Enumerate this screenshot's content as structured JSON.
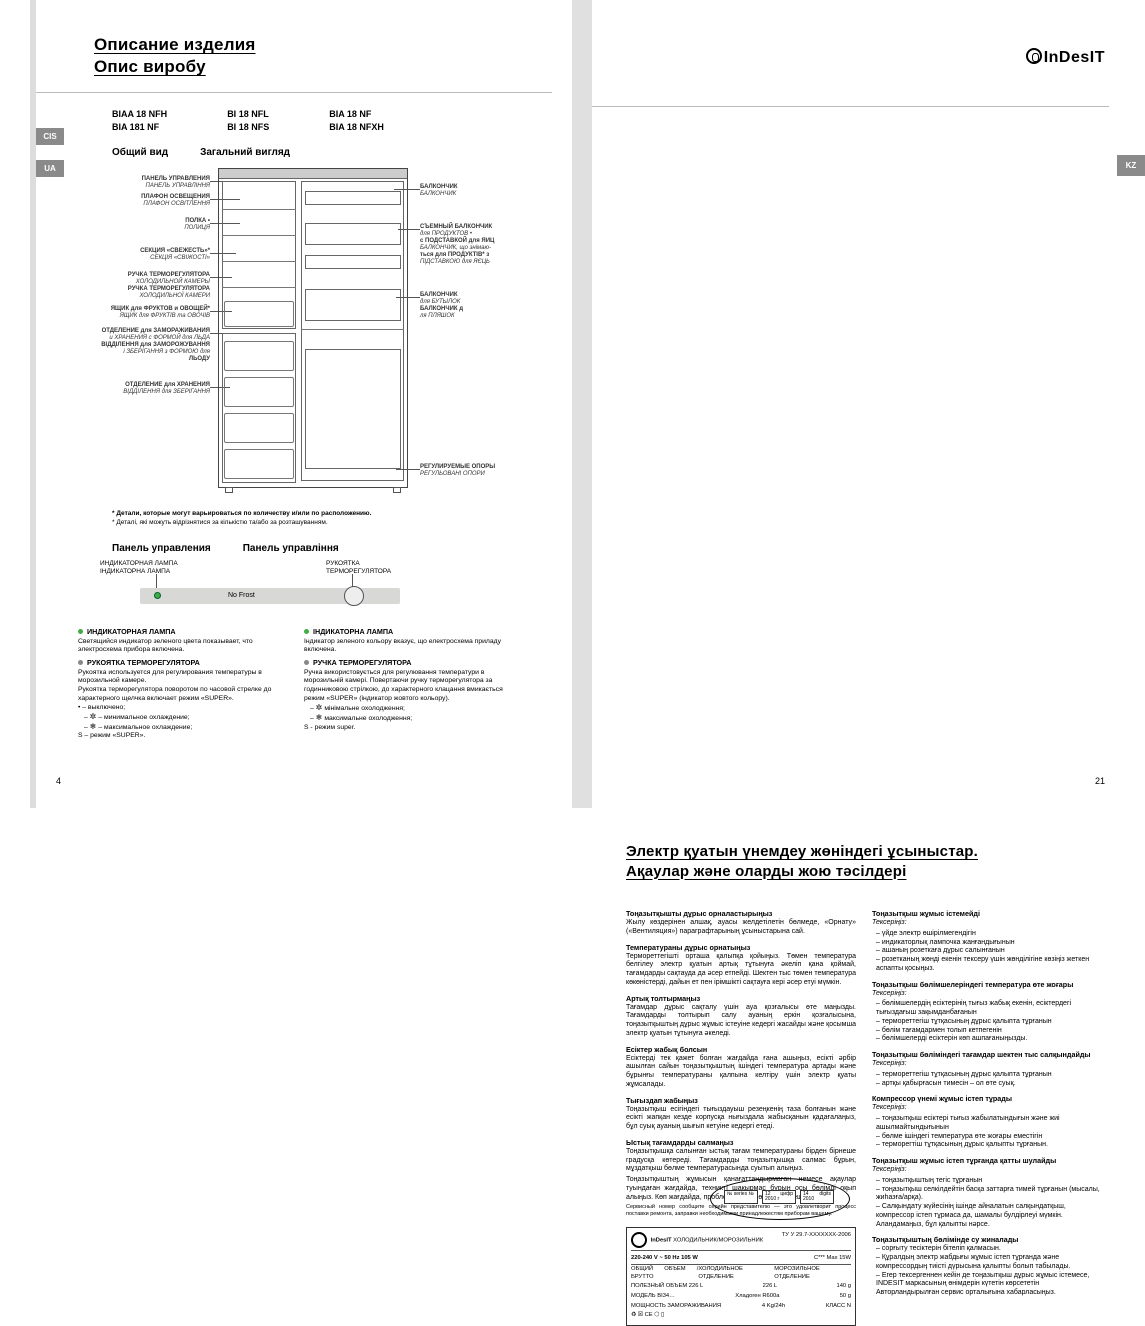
{
  "left": {
    "title1": "Описание изделия",
    "title2": "Опис виробу",
    "pagenum": "4",
    "models": [
      [
        "BIAA 18 NFH",
        "BIA 181 NF"
      ],
      [
        "BI 18 NFL",
        "BI 18 NFS"
      ],
      [
        "BIA 18 NF",
        "BIA 18 NFXH"
      ]
    ],
    "ov1": "Общий вид",
    "ov2": "Загальний вигляд",
    "callouts_left": [
      {
        "t": 12,
        "lines": [
          "ПАНЕЛЬ УПРАВЛЕНИЯ",
          "ПАНЕЛЬ УПРАВЛІННЯ"
        ],
        "ll": 26
      },
      {
        "t": 30,
        "lines": [
          "ПЛАФОН ОСВЕЩЕНИЯ",
          "ПЛАФОН ОСВІТЛЕННЯ"
        ],
        "ll": 30
      },
      {
        "t": 54,
        "lines": [
          "ПОЛКА •",
          "ПОЛИЦЯ"
        ],
        "ll": 30
      },
      {
        "t": 84,
        "lines": [
          "СЕКЦИЯ «СВЕЖЕСТЬ»*",
          "СЕКЦІЯ «СВІЖОСТІ»"
        ],
        "ll": 26
      },
      {
        "t": 108,
        "lines": [
          "РУЧКА ТЕРМОРЕГУЛЯТОРА",
          "ХОЛОДИЛЬНОЙ КАМЕРЫ",
          "РУЧКА ТЕРМОРЕГУЛЯТОРА",
          "ХОЛОДИЛЬНОЇ КАМЕРИ"
        ],
        "ll": 22
      },
      {
        "t": 142,
        "lines": [
          "ЯЩИК для ФРУКТОВ и ОВОЩЕЙ*",
          "ЯЩИК для ФРУКТІВ та ОВОЧІВ"
        ],
        "ll": 22
      },
      {
        "t": 164,
        "lines": [
          "ОТДЕЛЕНИЕ для ЗАМОРАЖИВАНИЯ",
          "и ХРАНЕНИЯ с ФОРМОЙ для ЛЬДА",
          "ВІДДІЛЕННЯ для ЗАМОРОЖУВАННЯ",
          "і ЗБЕРІГАННЯ з ФОРМОЮ для",
          "ЛЬОДУ"
        ],
        "ll": 18
      },
      {
        "t": 218,
        "lines": [
          "ОТДЕЛЕНИЕ для ХРАНЕНИЯ",
          "ВІДДІЛЕННЯ для ЗБЕРІГАННЯ"
        ],
        "ll": 20
      }
    ],
    "callouts_right": [
      {
        "t": 20,
        "lines": [
          "БАЛКОНЧИК",
          "БАЛКОНЧИК"
        ],
        "ll": 26
      },
      {
        "t": 60,
        "lines": [
          "СЪЕМНЫЙ БАЛКОНЧИК",
          "для ПРОДУКТОВ •",
          "с ПОДСТАВКОЙ для ЯИЦ",
          "БАЛКОНЧИК, що знімаю-",
          "ться для ПРОДУКТІВ* з",
          "ПІДСТАВКОЮ для ЯЄЦЬ"
        ],
        "ll": 22
      },
      {
        "t": 128,
        "lines": [
          "БАЛКОНЧИК",
          "для БУТЫЛОК",
          "БАЛКОНЧИК д",
          "ля ПЛЯШОК"
        ],
        "ll": 24
      },
      {
        "t": 300,
        "lines": [
          "РЕГУЛИРУЕМЫЕ ОПОРЫ",
          "РЕГУЛЬОВАНІ ОПОРИ"
        ],
        "ll": 24
      }
    ],
    "footnote1": "* Детали, которые могут варьироваться по количеству и/или по расположению.",
    "footnote2": "* Деталі, які можуть відрізнятися за кількістю та/або за розташуванням.",
    "cp1": "Панель управления",
    "cp2": "Панель управління",
    "cp_ind_ru": "ИНДИКАТОРНАЯ ЛАМПА",
    "cp_ind_ua": "ІНДИКАТОРНА ЛАМПА",
    "cp_knob_ru": "РУКОЯТКА",
    "cp_knob_ru2": "ТЕРМОРЕГУЛЯТОРА",
    "cp_nofrost": "No Frost",
    "col1": {
      "h1": "ИНДИКАТОРНАЯ ЛАМПА",
      "p1": "Светящийся индикатор зеленого цвета показывает, что электросхема прибора включена.",
      "h2": "РУКОЯТКА ТЕРМОРЕГУЛЯТОРА",
      "p2": "Рукоятка используется для регулирования температуры в морозильной камере.",
      "p3": "Рукоятка терморегулятора поворотом по часовой стрелке до характерного щелчка включает режим «SUPER».",
      "b0": "• – выключено;",
      "b1": "– минимальное охлаждение;",
      "b2": "– максимальное охлаждение;",
      "b3": "S – режим «SUPER»."
    },
    "col2": {
      "h1": "ІНДИКАТОРНА ЛАМПА",
      "p1": "Індикатор зеленого кольору вказує, що електросхема приладу включена.",
      "h2": "РУЧКА ТЕРМОРЕГУЛЯТОРА",
      "p2": "Ручка використовується для регулювання температури в морозильній камері. Повертаючи ручку терморегулятора за годинниковою стрілкою, до характерного клацання вмикається режим «SUPER» (індикатор жовтого кольору).",
      "b1": "мінімальне охолодження;",
      "b2": "максимальне охолодження;",
      "b3": "S - режим super."
    }
  },
  "right": {
    "title1": "Электр қуатын үнемдеу жөніндегі ұсыныстар.",
    "title2": "Ақаулар және оларды жою тәсілдері",
    "brand": "InDesIT",
    "pagenum": "21",
    "col1": [
      {
        "h": "Тоңазытқышты дұрыс орналастырыңыз",
        "p": [
          "Жылу көздерінен алшақ, ауасы желдетілетін бөлмеде, «Орнату» («Вентиляция») параграфтарының ұсыныстарына сай."
        ]
      },
      {
        "h": "Температураны дұрыс орнатыңыз",
        "p": [
          "Термореттегішті орташа қалыпқа қойыңыз. Төмен температура белгілеу электр қуатын артық тұтынуға әкеліп қана қоймай, тағамдарды сақтауда да әсер етпейді. Шектен тыс төмен температура көкөністерді, дайын ет пен ірімшікті сақтауға кері әсер етуі мүмкін."
        ]
      },
      {
        "h": "Артық толтырмаңыз",
        "p": [
          "Тағамдар дұрыс сақталу үшін ауа қозғалысы өте маңызды. Тағамдарды толтырып салу ауаның еркін қозғалысына, тоңазытқыштың дұрыс жұмыс істеуіне кедергі жасайды және қосымша электр қуатын тұтынуға әкеледі."
        ]
      },
      {
        "h": "Есіктер жабық болсын",
        "p": [
          "Есіктерді тек қажет болған жағдайда ғана ашыңыз, есікті әрбір ашылған сайын тоңазытқыштың ішіндегі температура артады және бұрынғы температураны қалпына келтіру үшін электр қуаты жұмсалады."
        ]
      },
      {
        "h": "Тығыздап жабыңыз",
        "p": [
          "Тоңазытқыш есігіндегі тығыздауыш резеңкенің таза болғанын және есікті жапқан кезде корпусқа нығыздала жабысқанын қадағалаңыз, бұл суық ауаның шығып кетуіне кедергі етеді."
        ]
      },
      {
        "h": "Ыстық тағамдарды салмаңыз",
        "p": [
          "Тоңазытқышқа салынған ыстық тағам температураны бірден бірнеше градусқа көтереді. Тағамдарды тоңазытқышқа салмас бұрын, мұздатқыш бөлме температурасында суытып алыңыз."
        ]
      },
      {
        "h": "",
        "p": [
          "Тоңазытқыштың жұмысын қанағаттандырмаған немесе ақаулар туындаған жағдайда, техникті шақырмас бұрын осы бөлімді оқып алыңыз. Көп жағдайда, проблемаларды өзіңіз де шеше аласыз."
        ]
      }
    ],
    "col2": [
      {
        "h": "Тоңазытқыш жұмыс істемейді",
        "i": "Тексеріңіз:",
        "s": [
          "үйде электр өшірілмегендігін",
          "индикаторлық лампочка жанғандығынын",
          "ашаның розеткаға дұрыс салынғанын",
          "розетканың жөнді екенін  тексеру үшін жөнділігіне көзіңіз жеткен аспапты қосыңыз."
        ]
      },
      {
        "h": "Тоңазытқыш бөлімшелеріндегі температура өте жоғары",
        "i": "Тексеріңіз:",
        "s": [
          "бөлімшелердің есіктерінің тығыз жабық екенін, есіктердегі тығыздағыш зақымданбағанын",
          "термореттегіш тұтқасының дұрыс қалыпта тұрғанын",
          "бөлім тағамдармен толып кетпегенін",
          "бөлімшелерді есіктерін көп ашпағаныңызды."
        ]
      },
      {
        "h": "Тоңазытқыш бөліміндегі тағамдар шектен тыс салқындайды",
        "i": "Тексеріңіз:",
        "s": [
          "термореттегіш тұтқасының дұрыс қалыпта тұрғанын",
          "артқы қабырғасын тимесін – ол өте суық."
        ]
      },
      {
        "h": "Компрессор үнемі жұмыс істеп тұрады",
        "i": "Тексеріңіз:",
        "s": [
          "тоңазытқыш есіктері тығыз жабылатындығын   және   жиі ашылмайтындығынын",
          "бөлме ішіндегі температура өте жоғары еместігін",
          "терморегтіш тұтқасының дұрыс қалыпты тұрғанын."
        ]
      },
      {
        "h": "Тоңазытқыш жұмыс істеп тұрғанда қатты шулайды",
        "i": "Тексеріңіз:",
        "s": [
          "тоңазытқыштың тегіс тұрғанын",
          "тоңазытқыш селкілдейтін басқа заттарға тимей тұрғанын (мысалы, жиһазға/арқа).",
          "Салқындату жүйесінің ішінде айналатын салқындатқыш, компрессор істеп тұрмаса да, шамалы булдірлеуі мүмкін. Аландамаңыз, бұл қалыпты нәрсе."
        ]
      },
      {
        "h": "Тоңазытқыштың бөлімінде су жиналады",
        "i": "",
        "s": [
          "сорғыту тесіктерін бітеліп қалмасын.",
          "Құралдың электр жабдығы жұмыс істеп тұрғанда және компрессордың тиісті дүрысына қалыпты болып табылады.",
          "Егер тексергеннен кейін де тоңазытқыш дұрыс жұмыс істемесе, INDESIT маркасының өнімдерін күтетін көрсететін Авторландырылған сервис орталығына хабарласыңыз."
        ]
      }
    ],
    "plate": {
      "caption": "Сервисный номер сообщите серийн представителю — это удовлетворит процесс поставки ремонта, заправки необходимыми принадлежестям приборам вашему.",
      "brand": "InDesIT",
      "type": "ХОЛОДИЛЬНИК/МОРОЗИЛЬНИК",
      "standard": "TУ У 29.7-XXXXXXX-2006",
      "row1l": "220-240 V ~ 50 Hz   105 W",
      "row1r": "C***   Max 15W",
      "r2a": "ОБЩИЙ ОБЪЕМ / БРУТТО",
      "r2al": "ХОЛОДИЛЬНОЕ ОТДЕЛЕНИЕ",
      "r2ar": "МОРОЗИЛЬНОЕ ОТДЕЛЕНИЕ",
      "r3": "ПОЛЕЗНЫЙ ОБЪЕМ   226 L",
      "r3a": "226 L",
      "r3b": "140 g",
      "r4": "МОДЕЛЬ   BI34…",
      "r4a": "Хладоген   R600a",
      "r4b": "50 g",
      "r5": "МОЩНОСТЬ ЗАМОРАЖИВАНИЯ",
      "r5a": "4 Kg/24h",
      "r5b": "КЛАСС   N",
      "box1": "№ series №",
      "box2": "12 цифр 2010 г",
      "box3": "14 digits 2010"
    }
  }
}
